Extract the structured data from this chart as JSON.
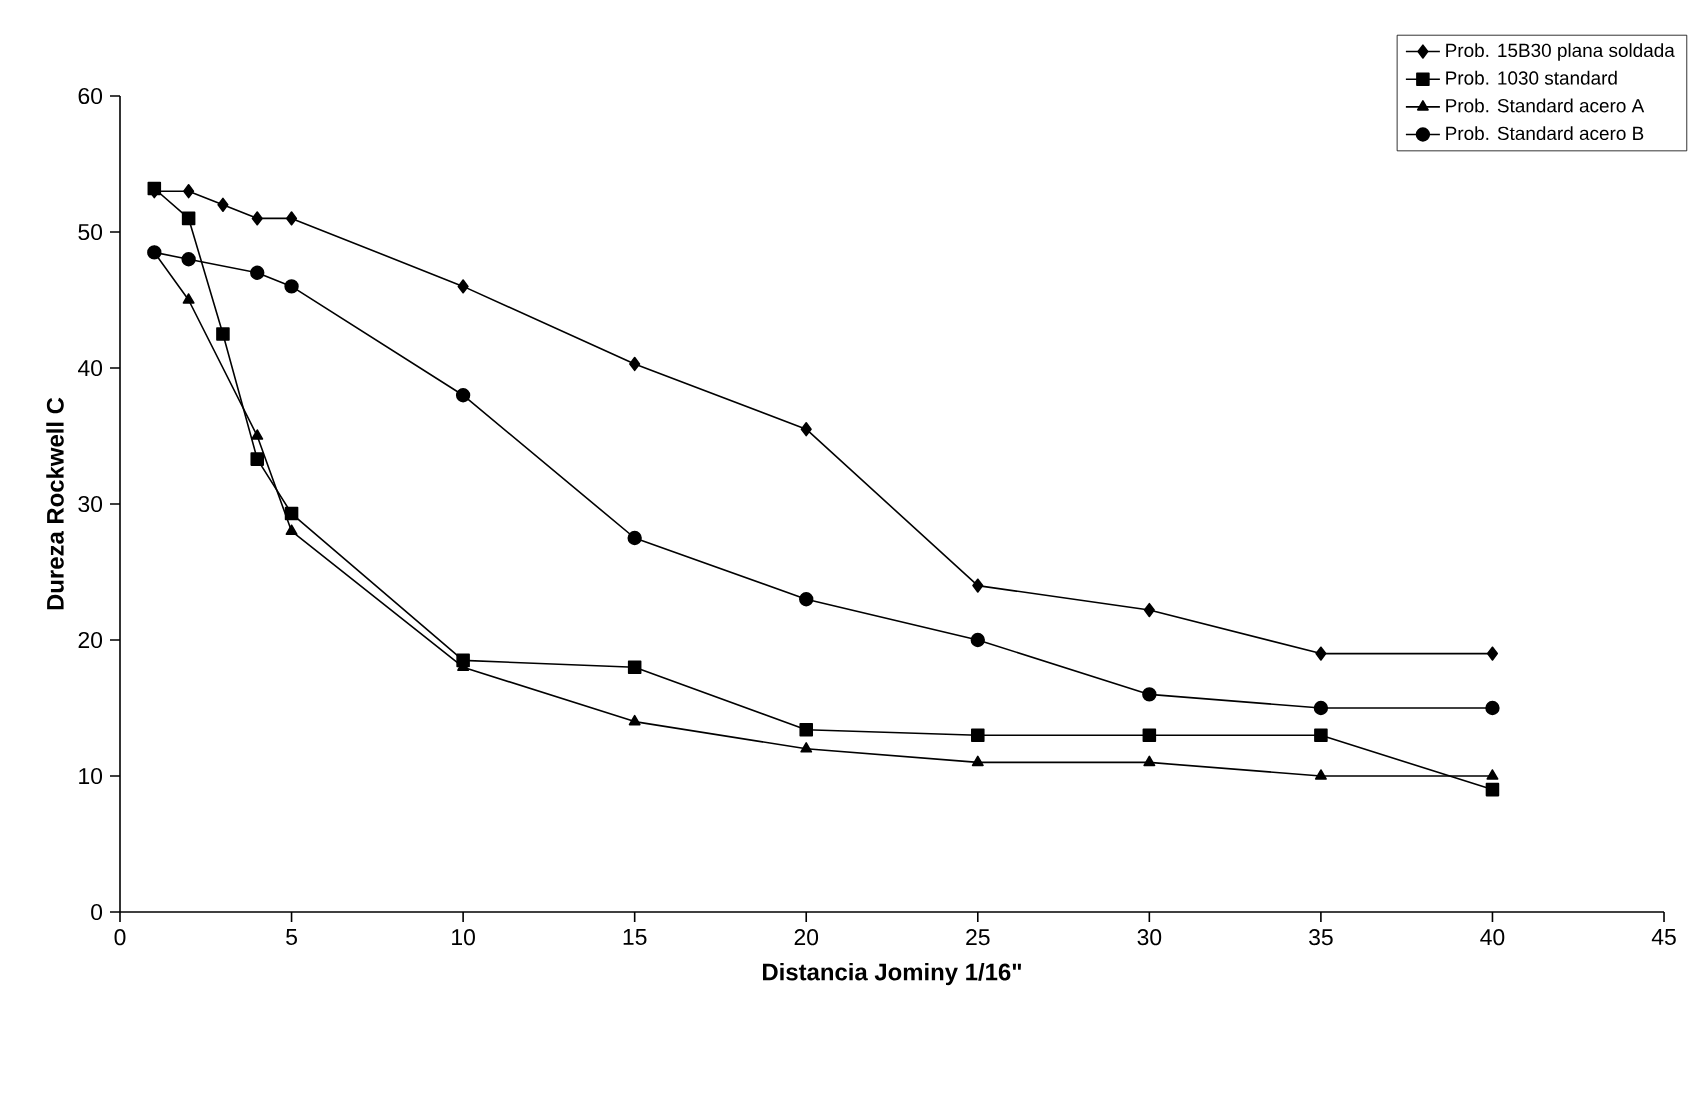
{
  "chart_data": {
    "type": "line",
    "xlabel": "Distancia Jominy 1/16\"",
    "ylabel": "Dureza Rockwell C",
    "xlim": [
      0,
      45
    ],
    "xticks": [
      0,
      5,
      10,
      15,
      20,
      25,
      30,
      35,
      40,
      45
    ],
    "ylim": [
      0,
      60
    ],
    "yticks": [
      0,
      10,
      20,
      30,
      40,
      50,
      60
    ],
    "legend": "top right",
    "grid": false,
    "line_style": "solid",
    "series": [
      {
        "name": "Prob. 15B30 plana soldada",
        "color": "#000000",
        "marker": "diamond",
        "x": [
          1,
          2,
          3,
          4,
          5,
          10,
          15,
          20,
          25,
          30,
          35,
          40
        ],
        "values": [
          53,
          53,
          52,
          51,
          51,
          46,
          40.3,
          35.5,
          24,
          22.2,
          19,
          19
        ]
      },
      {
        "name": "Prob. 1030 standard",
        "color": "#000000",
        "marker": "square",
        "x": [
          1,
          2,
          3,
          4,
          5,
          10,
          15,
          20,
          25,
          30,
          35,
          40
        ],
        "values": [
          53.2,
          51,
          42.5,
          33.3,
          29.3,
          18.5,
          18,
          13.4,
          13,
          13,
          13,
          9
        ]
      },
      {
        "name": "Prob. Standard acero A",
        "color": "#000000",
        "marker": "triangle",
        "x": [
          1,
          2,
          4,
          5,
          10,
          15,
          20,
          25,
          30,
          35,
          40
        ],
        "values": [
          48.5,
          45,
          35,
          28,
          18,
          14,
          12,
          11,
          11,
          10,
          10
        ]
      },
      {
        "name": "Prob. Standard acero B",
        "color": "#000000",
        "marker": "circle",
        "x": [
          1,
          2,
          4,
          5,
          10,
          15,
          20,
          25,
          30,
          35,
          40
        ],
        "values": [
          48.5,
          48,
          47,
          46,
          38,
          27.5,
          23,
          20,
          16,
          15,
          15
        ]
      }
    ]
  }
}
